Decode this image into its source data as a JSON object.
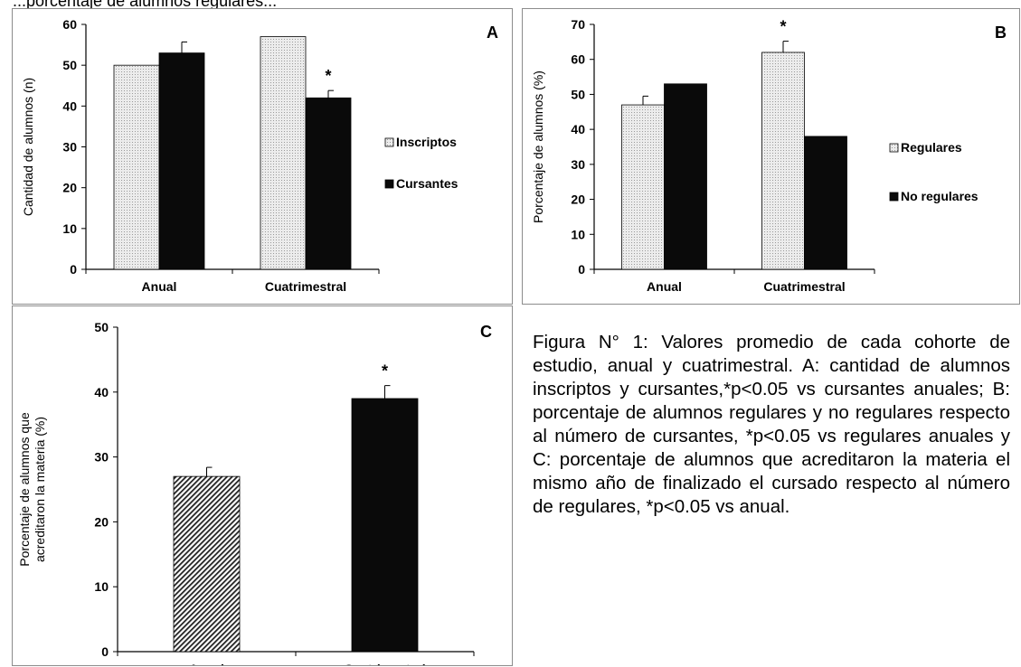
{
  "top_caption": "...porcentaje de alumnos regulares...",
  "figure_caption": "Figura N° 1: Valores promedio de cada cohorte de estudio, anual y cuatrimestral. A: cantidad de alumnos inscriptos y cursantes,*p<0.05 vs cursantes anuales; B: porcentaje de alumnos regulares y no regulares respecto al número de cursantes, *p<0.05 vs regulares anuales y C: porcentaje de alumnos que acreditaron la materia el mismo año de finalizado el cursado respecto al número de regulares, *p<0.05 vs anual.",
  "colors": {
    "light_bar": "#ececec",
    "dark_bar": "#0a0a0a",
    "frame": "#8c8c8c"
  },
  "chart_data": [
    {
      "panel_letter": "A",
      "type": "bar",
      "categories": [
        "Anual",
        "Cuatrimestral"
      ],
      "ylabel": "Cantidad de alumnos (n)",
      "ylim": [
        0,
        60
      ],
      "yticks": [
        0,
        10,
        20,
        30,
        40,
        50,
        60
      ],
      "ytick_labels": [
        "0",
        "10",
        "20",
        "30",
        "40",
        "50",
        "60"
      ],
      "legend_position": "right",
      "series": [
        {
          "name": "Inscriptos",
          "legend_label": "Inscriptos",
          "pattern": "light-dots",
          "values": [
            50,
            57
          ],
          "errors": [
            0,
            0
          ]
        },
        {
          "name": "Cursantes",
          "legend_label": "Cursantes",
          "pattern": "dark-solid",
          "values": [
            53,
            42
          ],
          "errors": [
            2.7,
            1.8
          ]
        }
      ],
      "significance": [
        {
          "series": 1,
          "category": 1,
          "marker": "*"
        }
      ]
    },
    {
      "panel_letter": "B",
      "type": "bar",
      "categories": [
        "Anual",
        "Cuatrimestral"
      ],
      "ylabel": "Porcentaje de alumnos (%)",
      "ylim": [
        0,
        70
      ],
      "yticks": [
        0,
        10,
        20,
        30,
        40,
        50,
        60,
        70
      ],
      "ytick_labels": [
        "0",
        "10",
        "20",
        "30",
        "40",
        "50",
        "60",
        "70"
      ],
      "legend_position": "right",
      "series": [
        {
          "name": "Regulares",
          "legend_label": "Regulares",
          "pattern": "light-dots",
          "values": [
            47,
            62
          ],
          "errors": [
            2.5,
            3.2
          ]
        },
        {
          "name": "No regulares",
          "legend_label": "No regulares",
          "pattern": "dark-solid",
          "values": [
            53,
            38
          ],
          "errors": [
            0,
            0
          ]
        }
      ],
      "significance": [
        {
          "series": 0,
          "category": 1,
          "marker": "*"
        }
      ]
    },
    {
      "panel_letter": "C",
      "type": "bar",
      "categories": [
        "Anual",
        "Cuatrimestral"
      ],
      "ylabel_lines": [
        "Porcentaje de alumnos que",
        "acreditaron la materia (%)"
      ],
      "ylim": [
        0,
        50
      ],
      "yticks": [
        0,
        10,
        20,
        30,
        40,
        50
      ],
      "ytick_labels": [
        "0",
        "10",
        "20",
        "30",
        "40",
        "50"
      ],
      "series": [
        {
          "patterns": [
            "diagonal-hatch",
            "dark-solid"
          ],
          "values": [
            27,
            39
          ],
          "errors": [
            1.4,
            2.0
          ]
        }
      ],
      "significance": [
        {
          "series": 0,
          "category": 1,
          "marker": "*"
        }
      ]
    }
  ]
}
